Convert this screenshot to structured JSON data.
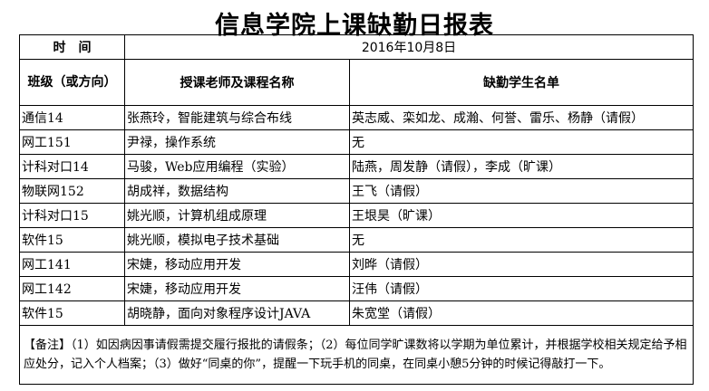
{
  "title": "信息学院上课缺勤日报表",
  "time_label": "时　间",
  "date": "2016年10月8日",
  "headers": {
    "class": "班级（或方向）",
    "teacher_course": "授课老师及课程名称",
    "absent": "缺勤学生名单"
  },
  "rows": [
    {
      "class": "通信14",
      "teacher_course": "张燕玲，智能建筑与综合布线",
      "absent": "英志威、栾如龙、成瀚、何誉、雷乐、杨静（请假）"
    },
    {
      "class": "网工151",
      "teacher_course": "尹禄，操作系统",
      "absent": "无"
    },
    {
      "class": "计科对口14",
      "teacher_course": "马骏，Web应用编程（实验）",
      "absent": "陆燕，周发静（请假），李成（旷课）"
    },
    {
      "class": "物联网152",
      "teacher_course": "胡成祥，数据结构",
      "absent": "王飞（请假）"
    },
    {
      "class": "计科对口15",
      "teacher_course": "姚光顺，计算机组成原理",
      "absent": "王垠昊（旷课）"
    },
    {
      "class": "软件15",
      "teacher_course": "姚光顺，模拟电子技术基础",
      "absent": "无"
    },
    {
      "class": "网工141",
      "teacher_course": "宋婕，移动应用开发",
      "absent": "刘晔（请假）"
    },
    {
      "class": "网工142",
      "teacher_course": "宋婕，移动应用开发",
      "absent": "汪伟（请假）"
    },
    {
      "class": "软件15",
      "teacher_course": "胡晓静，面向对象程序设计JAVA",
      "absent": "朱宽堂（请假）"
    }
  ],
  "note": "【备注】（1）如因病因事请假需提交履行报批的请假条；（2）每位同学旷课数将以学期为单位累计，并根据学校相关规定给予相应处分，记入个人档案；（3）做好“同桌的你”，提醒一下玩手机的同桌，在同桌小憩5分钟的时候记得敲打一下。"
}
